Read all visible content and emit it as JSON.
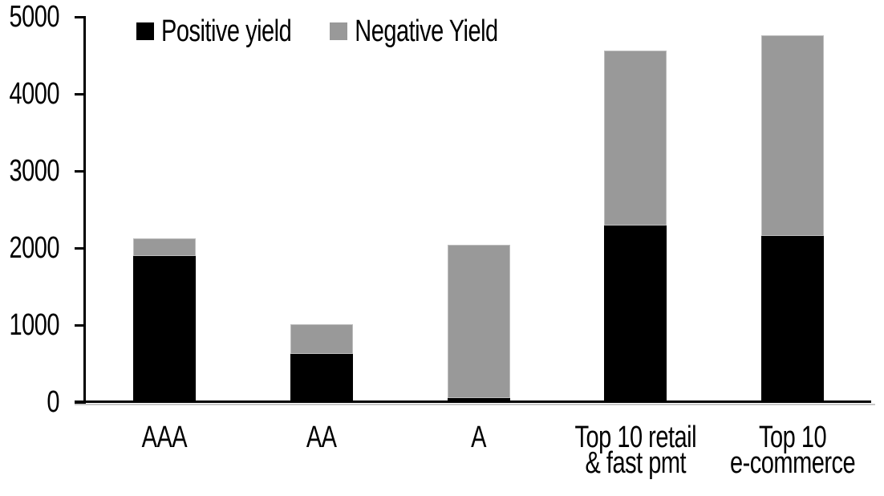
{
  "chart_data": {
    "type": "bar",
    "stacked": true,
    "title": "",
    "xlabel": "",
    "ylabel": "",
    "categories": [
      "AAA",
      "AA",
      "A",
      "Top 10 retail & fast pmt",
      "Top 10 e-commerce"
    ],
    "category_lines": [
      [
        "AAA"
      ],
      [
        "AA"
      ],
      [
        "A"
      ],
      [
        "Top 10 retail",
        "& fast pmt"
      ],
      [
        "Top 10",
        "e-commerce"
      ]
    ],
    "series": [
      {
        "name": "Positive yield",
        "color": "#000000",
        "values": [
          1900,
          620,
          50,
          2290,
          2160
        ]
      },
      {
        "name": "Negative Yield",
        "color": "#999999",
        "values": [
          220,
          390,
          1990,
          2270,
          2600
        ]
      }
    ],
    "totals": [
      2120,
      1010,
      2040,
      4560,
      4760
    ],
    "ylim": [
      0,
      5000
    ],
    "yticks": [
      0,
      1000,
      2000,
      3000,
      4000,
      5000
    ],
    "grid": false,
    "legend_position": "top-left",
    "background_color": "#ffffff",
    "axis_color": "#000000"
  }
}
